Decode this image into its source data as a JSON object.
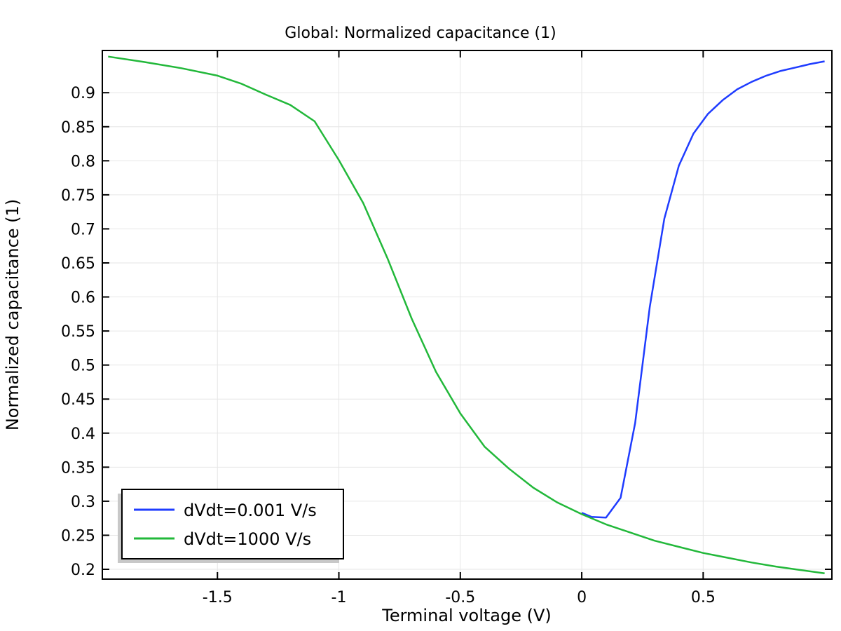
{
  "chart_data": {
    "type": "line",
    "title": "Global: Normalized capacitance (1)",
    "xlabel": "Terminal voltage (V)",
    "ylabel": "Normalized capacitance (1)",
    "xlim": [
      -1.974,
      1.03
    ],
    "ylim": [
      0.1856,
      0.962
    ],
    "grid": true,
    "legend_position": "bottom-left",
    "xticks": [
      -1.5,
      -1,
      -0.5,
      0,
      0.5
    ],
    "xtick_labels": [
      "-1.5",
      "-1",
      "-0.5",
      "0",
      "0.5"
    ],
    "yticks": [
      0.2,
      0.25,
      0.3,
      0.35,
      0.4,
      0.45,
      0.5,
      0.55,
      0.6,
      0.65,
      0.7,
      0.75,
      0.8,
      0.85,
      0.9
    ],
    "ytick_labels": [
      "0.2",
      "0.25",
      "0.3",
      "0.35",
      "0.4",
      "0.45",
      "0.5",
      "0.55",
      "0.6",
      "0.65",
      "0.7",
      "0.75",
      "0.8",
      "0.85",
      "0.9"
    ],
    "series": [
      {
        "name": "dVdt=0.001 V/s",
        "color": "#1f3cff",
        "x": [
          0,
          0.04,
          0.1,
          0.16,
          0.22,
          0.28,
          0.34,
          0.4,
          0.46,
          0.52,
          0.58,
          0.64,
          0.7,
          0.76,
          0.82,
          0.88,
          0.94,
          1.0
        ],
        "y": [
          0.283,
          0.277,
          0.276,
          0.305,
          0.415,
          0.585,
          0.715,
          0.793,
          0.84,
          0.869,
          0.889,
          0.905,
          0.916,
          0.925,
          0.932,
          0.937,
          0.942,
          0.946
        ]
      },
      {
        "name": "dVdt=1000 V/s",
        "color": "#22b83a",
        "x": [
          -1.95,
          -1.8,
          -1.65,
          -1.5,
          -1.4,
          -1.3,
          -1.2,
          -1.1,
          -1.0,
          -0.9,
          -0.8,
          -0.7,
          -0.6,
          -0.5,
          -0.4,
          -0.3,
          -0.2,
          -0.1,
          0,
          0.1,
          0.2,
          0.3,
          0.4,
          0.5,
          0.6,
          0.7,
          0.8,
          0.9,
          1.0
        ],
        "y": [
          0.953,
          0.945,
          0.936,
          0.925,
          0.913,
          0.897,
          0.882,
          0.858,
          0.801,
          0.738,
          0.657,
          0.568,
          0.49,
          0.429,
          0.38,
          0.348,
          0.32,
          0.298,
          0.281,
          0.266,
          0.254,
          0.242,
          0.233,
          0.224,
          0.217,
          0.21,
          0.204,
          0.199,
          0.194
        ]
      }
    ]
  }
}
